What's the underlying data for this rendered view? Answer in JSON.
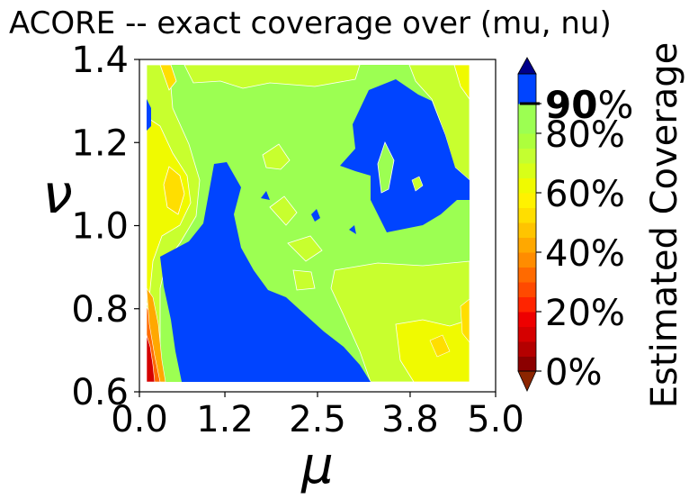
{
  "chart_data": {
    "type": "contour",
    "title": "ACORE -- exact coverage over (mu, nu)",
    "xlabel": "μ",
    "ylabel": "ν",
    "xlim": [
      0.0,
      5.0
    ],
    "ylim": [
      0.6,
      1.4
    ],
    "x_ticks": [
      "0.0",
      "1.2",
      "2.5",
      "3.8",
      "5.0"
    ],
    "y_ticks": [
      "0.6",
      "0.8",
      "1.0",
      "1.2",
      "1.4"
    ],
    "colorbar": {
      "label": "Estimated Coverage",
      "ticks": [
        {
          "value": 0,
          "label": "0%"
        },
        {
          "value": 20,
          "label": "20%"
        },
        {
          "value": 40,
          "label": "40%"
        },
        {
          "value": 60,
          "label": "60%"
        },
        {
          "value": 80,
          "label": "80%"
        },
        {
          "value": 90,
          "label": "90",
          "suffix": "%",
          "emphasized": true
        }
      ],
      "levels": [
        0,
        5,
        10,
        15,
        20,
        25,
        30,
        35,
        40,
        45,
        50,
        55,
        60,
        65,
        70,
        75,
        80,
        85,
        90,
        95,
        100
      ],
      "colors": [
        "#8b0000",
        "#b40000",
        "#d50000",
        "#ee0000",
        "#ff2400",
        "#ff4a00",
        "#ff6a00",
        "#ff8c00",
        "#ffa800",
        "#ffc400",
        "#ffde00",
        "#fff200",
        "#f0fa00",
        "#d8ff18",
        "#c4ff30",
        "#adff3c",
        "#9cff52",
        "#9cff52",
        "#0044ff",
        "#0044ff"
      ],
      "extend_low": "#8b2500",
      "extend_high": "#00008b"
    },
    "series": [
      {
        "name": "",
        "description": "coverage ≥ 90% (blue regions)",
        "color": "#0044ff"
      }
    ]
  }
}
